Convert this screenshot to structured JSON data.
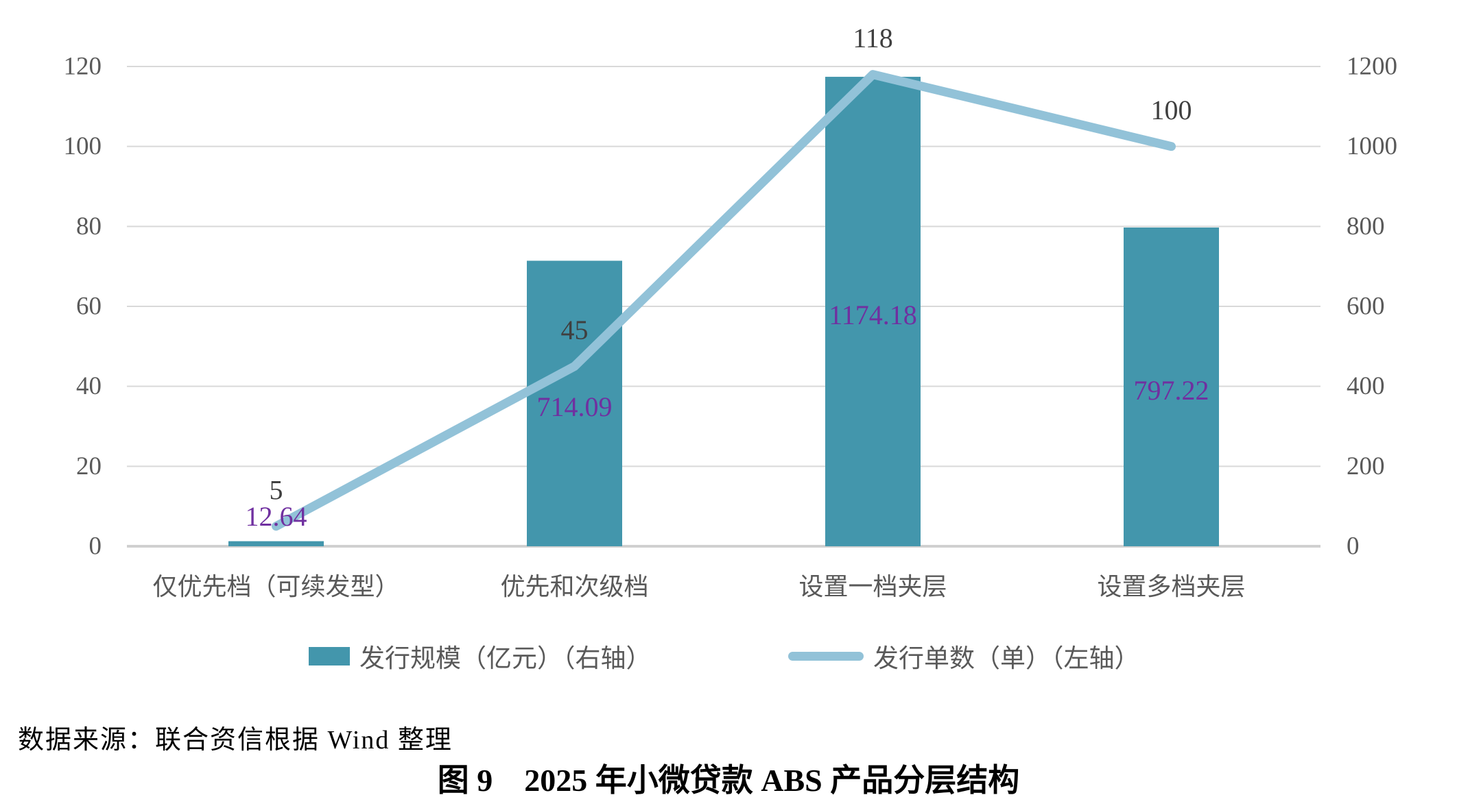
{
  "chart_data": {
    "type": "bar",
    "subtype": "combo-bar-line",
    "categories": [
      "仅优先档（可续发型）",
      "优先和次级档",
      "设置一档夹层",
      "设置多档夹层"
    ],
    "series": [
      {
        "name": "发行规模（亿元）（右轴）",
        "type": "bar",
        "axis": "right",
        "values": [
          12.64,
          714.09,
          1174.18,
          797.22
        ],
        "color": "#4396ac",
        "label_color": "#7030a0"
      },
      {
        "name": "发行单数（单）（左轴）",
        "type": "line",
        "axis": "left",
        "values": [
          5,
          45,
          118,
          100
        ],
        "color": "#92c2d8",
        "label_color": "#3f3f3f"
      }
    ],
    "left_axis": {
      "min": 0,
      "max": 120,
      "step": 20,
      "ticks": [
        0,
        20,
        40,
        60,
        80,
        100,
        120
      ]
    },
    "right_axis": {
      "min": 0,
      "max": 1200,
      "step": 200,
      "ticks": [
        0,
        200,
        400,
        600,
        800,
        1000,
        1200
      ]
    },
    "grid": true,
    "gridline_color": "#d9d9d9",
    "axis_line_color": "#d0d0d0",
    "tick_label_color": "#595959",
    "legend_position": "bottom",
    "title": "图 9　2025 年小微贷款 ABS 产品分层结构"
  },
  "legend": {
    "bar_label": "发行规模（亿元）（右轴）",
    "line_label": "发行单数（单）（左轴）"
  },
  "source_note": "数据来源：联合资信根据 Wind 整理",
  "caption": "图 9　2025 年小微贷款 ABS 产品分层结构"
}
